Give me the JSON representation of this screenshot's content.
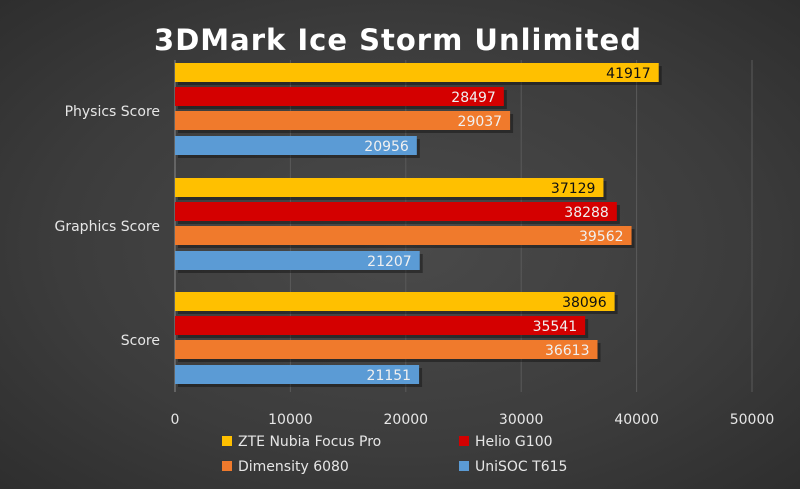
{
  "chart_data": {
    "type": "bar",
    "orientation": "horizontal",
    "title": "3DMark Ice Storm Unlimited",
    "categories": [
      "Physics Score",
      "Graphics Score",
      "Score"
    ],
    "series": [
      {
        "name": "ZTE Nubia Focus Pro",
        "color": "#ffc000",
        "label_color": "#111111",
        "values": [
          41917,
          37129,
          38096
        ]
      },
      {
        "name": "Helio G100",
        "color": "#d40000",
        "label_color": "#f0f0f0",
        "values": [
          28497,
          38288,
          35541
        ]
      },
      {
        "name": "Dimensity 6080",
        "color": "#f07a2c",
        "label_color": "#f0f0f0",
        "values": [
          29037,
          39562,
          36613
        ]
      },
      {
        "name": "UniSOC T615",
        "color": "#5b9bd5",
        "label_color": "#f0f0f0",
        "values": [
          20956,
          21207,
          21151
        ]
      }
    ],
    "xlim": [
      0,
      50000
    ],
    "xticks": [
      0,
      10000,
      20000,
      30000,
      40000,
      50000
    ],
    "grid": true,
    "legend_position": "bottom"
  }
}
